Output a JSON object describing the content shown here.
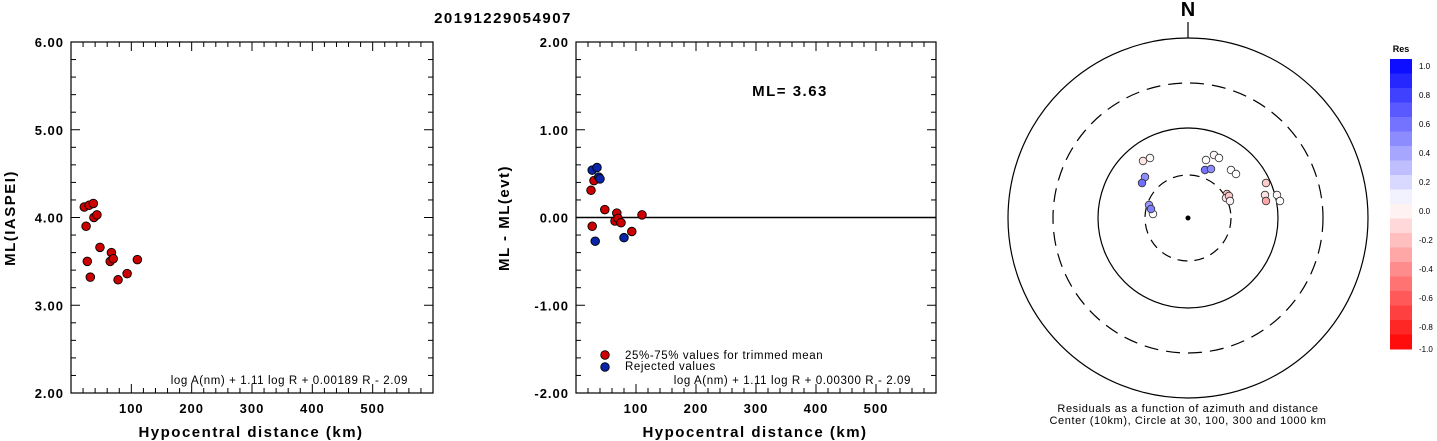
{
  "header": {
    "event_id": "20191229054907"
  },
  "colors": {
    "trimmed": "#cc0000",
    "rejected": "#0a24a8",
    "marker_outline": "#000000",
    "res_positive": "#0000ff",
    "res_negative": "#ff0000"
  },
  "chart_data": [
    {
      "type": "scatter",
      "xlabel": "Hypocentral distance (km)",
      "ylabel": "ML(IASPEI)",
      "xlim": [
        0,
        600
      ],
      "ylim": [
        2.0,
        6.0
      ],
      "x_ticks": [
        100,
        200,
        300,
        400,
        500
      ],
      "y_ticks": [
        "2.00",
        "3.00",
        "4.00",
        "5.00",
        "6.00"
      ],
      "formula": "log A(nm) + 1.11 log R + 0.00189 R - 2.09",
      "series": [
        {
          "x": [
            22,
            25,
            27,
            30,
            32,
            37,
            38,
            43,
            48,
            65,
            67,
            70,
            78,
            93,
            110
          ],
          "y": [
            4.12,
            3.9,
            3.5,
            4.14,
            3.32,
            4.16,
            4.0,
            4.03,
            3.66,
            3.5,
            3.6,
            3.53,
            3.29,
            3.36,
            3.52
          ]
        }
      ]
    },
    {
      "type": "scatter",
      "xlabel": "Hypocentral distance (km)",
      "ylabel": "ML - ML(evt)",
      "xlim": [
        0,
        600
      ],
      "ylim": [
        -2.0,
        2.0
      ],
      "x_ticks": [
        100,
        200,
        300,
        400,
        500
      ],
      "y_ticks": [
        "-2.00",
        "-1.00",
        "0.00",
        "1.00",
        "2.00"
      ],
      "annotation": "ML= 3.63",
      "formula": "log A(nm) + 1.11 log R + 0.00300 R - 2.09",
      "reference_line_y": 0.0,
      "legend": [
        {
          "label": "25%-75% values for trimmed mean",
          "color": "#cc0000"
        },
        {
          "label": "Rejected values",
          "color": "#0a24a8"
        }
      ],
      "series": [
        {
          "name": "25%-75% values for trimmed mean",
          "color": "#cc0000",
          "x": [
            25,
            27,
            30,
            48,
            65,
            68,
            70,
            75,
            93,
            110
          ],
          "y": [
            0.31,
            -0.1,
            0.42,
            0.09,
            -0.04,
            0.05,
            -0.01,
            -0.06,
            -0.16,
            0.03
          ]
        },
        {
          "name": "Rejected values",
          "color": "#0a24a8",
          "x": [
            27,
            32,
            35,
            38,
            40,
            80
          ],
          "y": [
            0.54,
            -0.27,
            0.57,
            0.46,
            0.44,
            -0.23
          ]
        }
      ]
    },
    {
      "type": "polar-scatter",
      "north_label": "N",
      "caption_lines": [
        "Residuals as a function of azimuth and distance",
        "Center (10km), Circle at 30, 100, 300 and 1000 km"
      ],
      "rings_km": [
        30,
        100,
        300,
        1000
      ],
      "colorbar": {
        "title": "Res",
        "ticks": [
          "1.0",
          "0.8",
          "0.6",
          "0.4",
          "0.2",
          "0.0",
          "-0.2",
          "-0.4",
          "-0.6",
          "-0.8",
          "-1.0"
        ]
      },
      "points": [
        {
          "dx": -45,
          "dy": -57,
          "res": -0.1
        },
        {
          "dx": -38,
          "dy": -60,
          "res": -0.02
        },
        {
          "dx": 18,
          "dy": -58,
          "res": 0.0
        },
        {
          "dx": 26,
          "dy": -63,
          "res": -0.03
        },
        {
          "dx": 31,
          "dy": -60,
          "res": 0.0
        },
        {
          "dx": 17,
          "dy": -48,
          "res": 0.55
        },
        {
          "dx": 23,
          "dy": -49,
          "res": 0.45
        },
        {
          "dx": 43,
          "dy": -48,
          "res": 0.0
        },
        {
          "dx": 48,
          "dy": -44,
          "res": 0.0
        },
        {
          "dx": -43,
          "dy": -41,
          "res": 0.45
        },
        {
          "dx": -46,
          "dy": -35,
          "res": 0.57
        },
        {
          "dx": -35,
          "dy": -4,
          "res": 0.0
        },
        {
          "dx": 39,
          "dy": -24,
          "res": -0.28
        },
        {
          "dx": 38,
          "dy": -20,
          "res": -0.1
        },
        {
          "dx": 41,
          "dy": -22,
          "res": -0.22
        },
        {
          "dx": 42,
          "dy": -17,
          "res": -0.05
        },
        {
          "dx": 78,
          "dy": -35,
          "res": -0.2
        },
        {
          "dx": 77,
          "dy": -23,
          "res": -0.12
        },
        {
          "dx": 78,
          "dy": -17,
          "res": -0.35
        },
        {
          "dx": 89,
          "dy": -23,
          "res": -0.03
        },
        {
          "dx": 92,
          "dy": -17,
          "res": 0.0
        },
        {
          "dx": -39,
          "dy": -13,
          "res": 0.4
        },
        {
          "dx": -37,
          "dy": -9,
          "res": 0.5
        }
      ]
    }
  ]
}
